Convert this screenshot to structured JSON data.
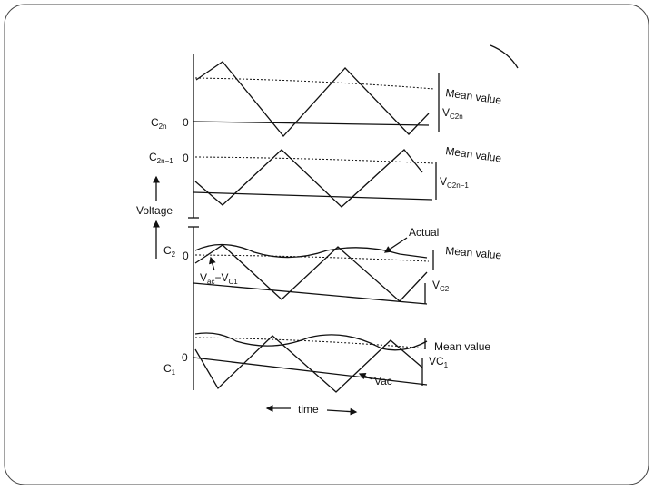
{
  "panels": [
    {
      "capacitor": {
        "text": "C",
        "sub": "2n"
      },
      "zero": "0",
      "mean": "Mean value",
      "vc": {
        "text": "V",
        "sub": "C2n"
      }
    },
    {
      "capacitor": {
        "text": "C",
        "sub": "2n−1"
      },
      "zero": "0",
      "mean": "Mean value",
      "vc": {
        "text": "V",
        "sub": "C2n−1"
      }
    },
    {
      "capacitor": {
        "text": "C",
        "sub": "2"
      },
      "zero": "0",
      "mean": "Mean value",
      "vc": {
        "text": "V",
        "sub": "C2"
      },
      "actual": "Actual",
      "difference": {
        "text": "V",
        "sub": "ac",
        "mid": "−V",
        "sub2": "C1"
      }
    },
    {
      "capacitor": {
        "text": "C",
        "sub": "1"
      },
      "zero": "0",
      "mean": "Mean value",
      "vc": {
        "text": "VC",
        "sub": "1"
      },
      "source": "Vac"
    }
  ],
  "axis": {
    "voltage": "Voltage",
    "time": "time"
  }
}
